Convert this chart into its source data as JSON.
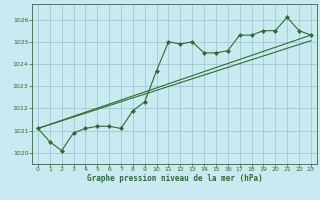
{
  "title": "Graphe pression niveau de la mer (hPa)",
  "background_color": "#c8eaf0",
  "grid_color": "#a0c8d8",
  "line_color": "#2d6e2d",
  "xlim": [
    -0.5,
    23.5
  ],
  "ylim": [
    1019.5,
    1026.7
  ],
  "yticks": [
    1020,
    1021,
    1022,
    1023,
    1024,
    1025,
    1026
  ],
  "xticks": [
    0,
    1,
    2,
    3,
    4,
    5,
    6,
    7,
    8,
    9,
    10,
    11,
    12,
    13,
    14,
    15,
    16,
    17,
    18,
    19,
    20,
    21,
    22,
    23
  ],
  "series1_x": [
    0,
    1,
    2,
    3,
    4,
    5,
    6,
    7,
    8,
    9,
    10,
    11,
    12,
    13,
    14,
    15,
    16,
    17,
    18,
    19,
    20,
    21,
    22,
    23
  ],
  "series1_y": [
    1021.1,
    1020.5,
    1020.1,
    1020.9,
    1021.1,
    1021.2,
    1021.2,
    1021.1,
    1021.9,
    1022.3,
    1023.7,
    1025.0,
    1024.9,
    1025.0,
    1024.5,
    1024.5,
    1024.6,
    1025.3,
    1025.3,
    1025.5,
    1025.5,
    1026.1,
    1025.5,
    1025.3
  ],
  "trend1_x": [
    0,
    23
  ],
  "trend1_y": [
    1021.1,
    1025.3
  ],
  "trend2_x": [
    0,
    23
  ],
  "trend2_y": [
    1021.1,
    1025.05
  ]
}
